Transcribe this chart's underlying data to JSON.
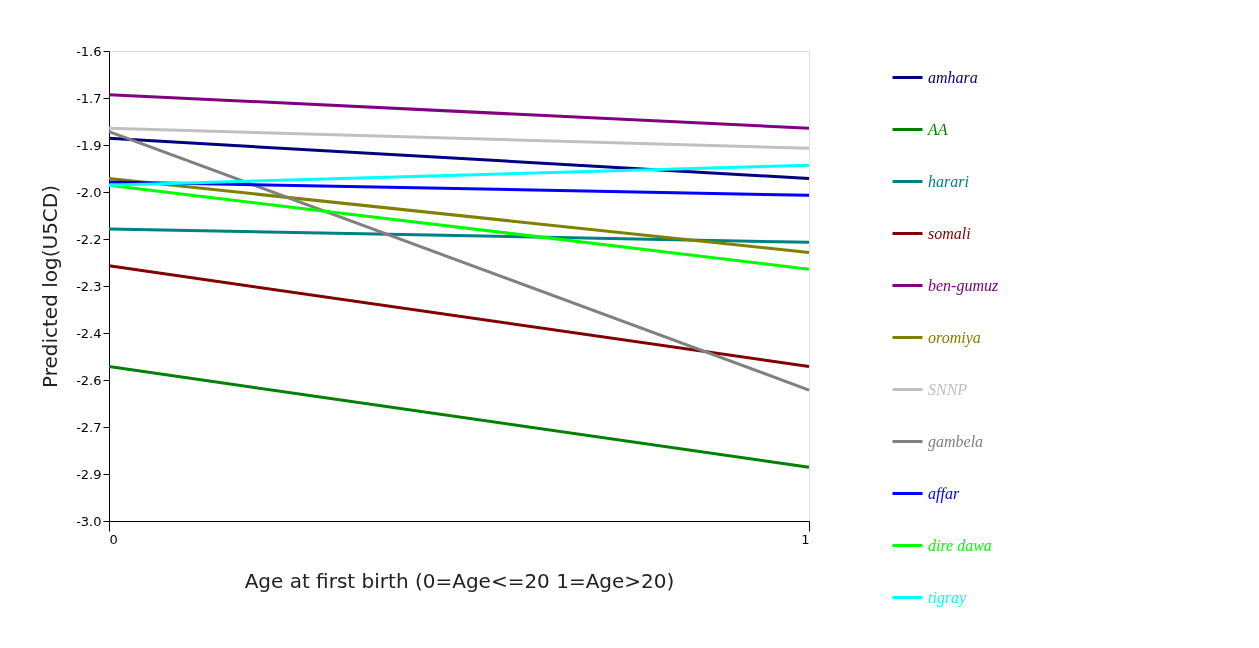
{
  "chart_data": {
    "type": "line",
    "xlabel": "Age at first birth (0=Age<=20      1=Age>20)",
    "ylabel": "Predicted log(U5CD)",
    "x": [
      0,
      1
    ],
    "xlim": [
      0,
      1
    ],
    "xticks": [
      0,
      1
    ],
    "ylim": [
      -3.0,
      -1.6
    ],
    "yticks": [
      -1.6,
      {
        "value": -1.74,
        "label": "-1.7"
      },
      {
        "value": -1.88,
        "label": "-1.9"
      },
      {
        "value": -2.02,
        "label": "-2.0"
      },
      {
        "value": -2.16,
        "label": "-2.2"
      },
      {
        "value": -2.3,
        "label": "-2.3"
      },
      {
        "value": -2.44,
        "label": "-2.4"
      },
      {
        "value": -2.58,
        "label": "-2.6"
      },
      {
        "value": -2.72,
        "label": "-2.7"
      },
      {
        "value": -2.86,
        "label": "-2.9"
      },
      {
        "value": -3.0,
        "label": "-3.0"
      }
    ],
    "grid": false,
    "legend": "right",
    "marker": "none",
    "line_style": "solid",
    "series": [
      {
        "name": "amhara",
        "color": "#000080",
        "values": [
          -1.86,
          -1.98
        ]
      },
      {
        "name": "AA",
        "color": "#008000",
        "values": [
          -2.54,
          -2.84
        ]
      },
      {
        "name": "harari",
        "color": "#008080",
        "values": [
          -2.13,
          -2.17
        ]
      },
      {
        "name": "somali",
        "color": "#800000",
        "values": [
          -2.24,
          -2.54
        ]
      },
      {
        "name": "ben-gumuz",
        "color": "#800080",
        "values": [
          -1.73,
          -1.83
        ]
      },
      {
        "name": "oromiya",
        "color": "#808000",
        "values": [
          -1.98,
          -2.2
        ]
      },
      {
        "name": "SNNP",
        "color": "#c0c0c0",
        "values": [
          -1.83,
          -1.89
        ]
      },
      {
        "name": "gambela",
        "color": "#808080",
        "values": [
          -1.84,
          -2.61
        ]
      },
      {
        "name": "affar",
        "color": "#0000ff",
        "values": [
          -1.99,
          -2.03
        ]
      },
      {
        "name": "dire dawa",
        "color": "#00ff00",
        "values": [
          -2.0,
          -2.25
        ]
      },
      {
        "name": "tigray",
        "color": "#00ffff",
        "values": [
          -2.0,
          -1.94
        ]
      }
    ]
  }
}
